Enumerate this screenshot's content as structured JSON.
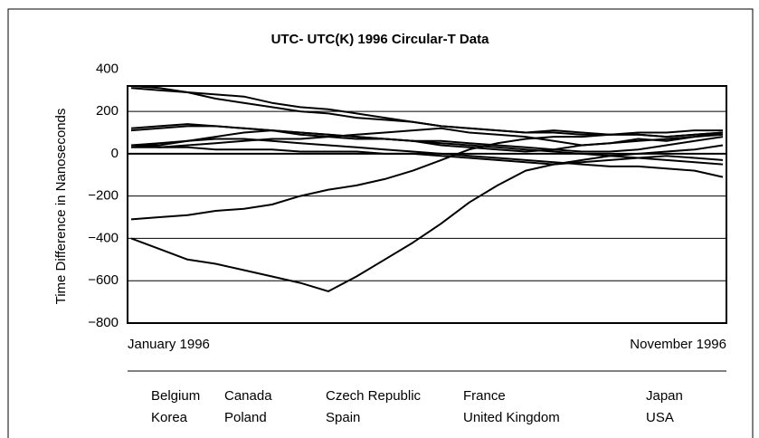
{
  "chart_data": {
    "type": "line",
    "title": "UTC- UTC(K) 1996 Circular-T Data",
    "y_label": "Time Difference in Nanoseconds",
    "categories": [
      "January 1996",
      null,
      null,
      null,
      null,
      null,
      null,
      null,
      null,
      null,
      null,
      null,
      null,
      null,
      null,
      null,
      null,
      null,
      null,
      null,
      null,
      "November 1996"
    ],
    "ylim": [
      -800,
      320
    ],
    "yticks": [
      400,
      200,
      0,
      {
        "value": -200,
        "label": "−200"
      },
      {
        "value": -400,
        "label": "−400"
      },
      {
        "value": -600,
        "label": "−600"
      },
      {
        "value": -800,
        "label": "−800"
      }
    ],
    "grid": true,
    "series": [
      {
        "name": "Belgium",
        "color": "#000000",
        "values": [
          320,
          310,
          290,
          260,
          240,
          220,
          200,
          190,
          170,
          160,
          150,
          130,
          120,
          110,
          100,
          100,
          90,
          90,
          90,
          80,
          90,
          100
        ]
      },
      {
        "name": "Canada",
        "color": "#000000",
        "values": [
          310,
          300,
          290,
          280,
          270,
          240,
          220,
          210,
          190,
          170,
          150,
          130,
          120,
          110,
          100,
          110,
          100,
          90,
          100,
          100,
          110,
          110
        ]
      },
      {
        "name": "Czech Republic",
        "color": "#000000",
        "values": [
          110,
          120,
          130,
          130,
          120,
          110,
          100,
          90,
          80,
          70,
          60,
          50,
          40,
          30,
          20,
          10,
          0,
          -10,
          -20,
          -30,
          -40,
          -50
        ]
      },
      {
        "name": "France",
        "color": "#000000",
        "values": [
          40,
          40,
          60,
          80,
          100,
          110,
          100,
          90,
          80,
          70,
          60,
          40,
          30,
          20,
          10,
          20,
          40,
          50,
          60,
          70,
          80,
          90
        ]
      },
      {
        "name": "Japan",
        "color": "#000000",
        "values": [
          40,
          50,
          60,
          70,
          70,
          60,
          50,
          40,
          30,
          20,
          10,
          0,
          -10,
          -20,
          -30,
          -40,
          -50,
          -60,
          -60,
          -70,
          -80,
          -110
        ]
      },
      {
        "name": "Korea",
        "color": "#000000",
        "values": [
          -400,
          -450,
          -500,
          -520,
          -550,
          -580,
          -610,
          -650,
          -580,
          -500,
          -420,
          -330,
          -230,
          -150,
          -80,
          -50,
          -30,
          -10,
          0,
          10,
          20,
          40
        ]
      },
      {
        "name": "Poland",
        "color": "#000000",
        "values": [
          -310,
          -300,
          -290,
          -270,
          -260,
          -240,
          -200,
          -170,
          -150,
          -120,
          -80,
          -30,
          20,
          50,
          70,
          80,
          80,
          90,
          90,
          80,
          90,
          100
        ]
      },
      {
        "name": "Spain",
        "color": "#000000",
        "values": [
          30,
          30,
          30,
          20,
          20,
          20,
          10,
          10,
          10,
          0,
          0,
          -10,
          -20,
          -30,
          -40,
          -50,
          -40,
          -30,
          -20,
          -10,
          -20,
          -30
        ]
      },
      {
        "name": "United Kingdom",
        "color": "#000000",
        "values": [
          120,
          130,
          140,
          130,
          120,
          110,
          90,
          80,
          70,
          70,
          60,
          60,
          50,
          40,
          30,
          20,
          10,
          10,
          20,
          40,
          60,
          80
        ]
      },
      {
        "name": "USA",
        "color": "#000000",
        "values": [
          40,
          30,
          40,
          50,
          60,
          70,
          70,
          80,
          90,
          100,
          110,
          120,
          100,
          90,
          80,
          60,
          40,
          50,
          70,
          60,
          80,
          100
        ]
      }
    ]
  }
}
